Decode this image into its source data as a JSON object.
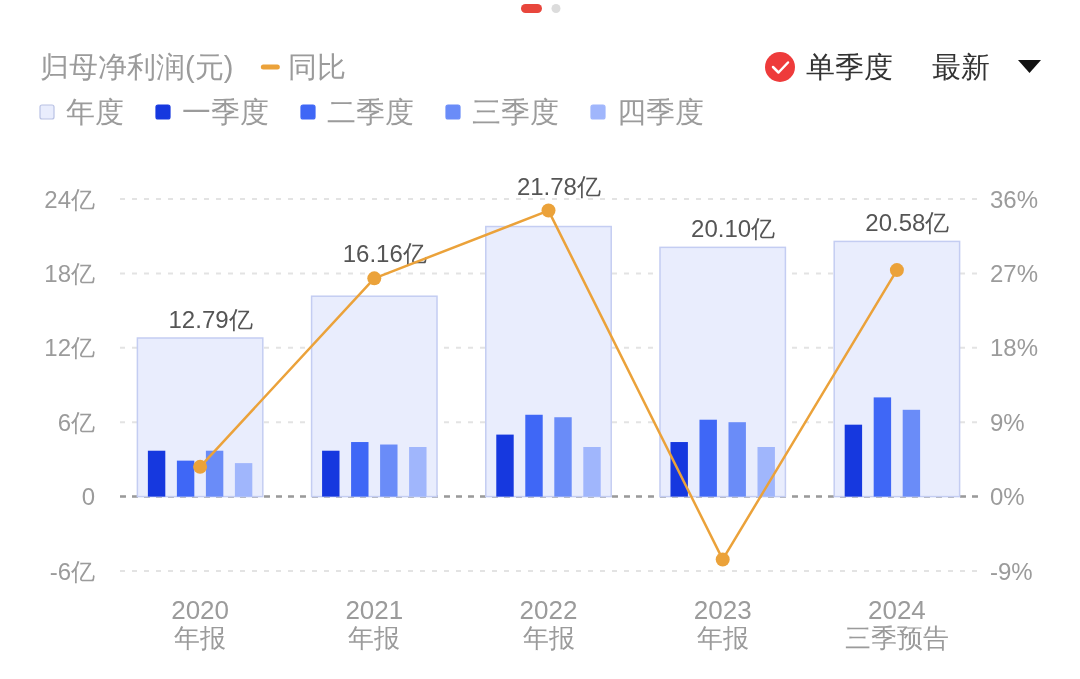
{
  "chart_data": {
    "type": "bar",
    "title": "归母净利润(元)",
    "categories": [
      "2020\n年报",
      "2021\n年报",
      "2022\n年报",
      "2023\n年报",
      "2024\n三季预告"
    ],
    "series": [
      {
        "name": "年度",
        "color": "#e9edfd",
        "values": [
          12.79,
          16.16,
          21.78,
          20.1,
          20.58
        ],
        "value_labels": [
          "12.79亿",
          "16.16亿",
          "21.78亿",
          "20.10亿",
          "20.58亿"
        ]
      },
      {
        "name": "一季度",
        "color": "#1638df",
        "values": [
          3.7,
          3.7,
          5.0,
          4.4,
          5.8
        ]
      },
      {
        "name": "二季度",
        "color": "#3f67f6",
        "values": [
          2.9,
          4.4,
          6.6,
          6.2,
          8.0
        ]
      },
      {
        "name": "三季度",
        "color": "#6a8cf8",
        "values": [
          3.7,
          4.2,
          6.4,
          6.0,
          7.0
        ]
      },
      {
        "name": "四季度",
        "color": "#a0b6fc",
        "values": [
          2.7,
          4.0,
          4.0,
          4.0,
          null
        ]
      },
      {
        "name": "同比",
        "type": "line",
        "axis": "y2",
        "color": "#eba23a",
        "values": [
          3.6,
          26.4,
          34.6,
          -7.6,
          27.4
        ]
      }
    ],
    "ylim": [
      -6,
      24
    ],
    "yticks": [
      {
        "value": -6,
        "label": "-6亿"
      },
      0,
      {
        "value": 6,
        "label": "6亿"
      },
      {
        "value": 12,
        "label": "12亿"
      },
      {
        "value": 18,
        "label": "18亿"
      },
      {
        "value": 24,
        "label": "24亿"
      }
    ],
    "y2lim": [
      -9,
      36
    ],
    "y2ticks": [
      {
        "value": -9,
        "label": "-9%"
      },
      {
        "value": 0,
        "label": "0%"
      },
      {
        "value": 9,
        "label": "9%"
      },
      {
        "value": 18,
        "label": "18%"
      },
      {
        "value": 27,
        "label": "27%"
      },
      {
        "value": 36,
        "label": "36%"
      }
    ],
    "ref_lines": [
      {
        "axis": "y",
        "value": 0,
        "color": "#9a9a9a",
        "line_style": "dashed"
      }
    ],
    "grid": "y",
    "legend": "top left",
    "marker": "circle",
    "annotations": [
      "单季度",
      "最新"
    ]
  }
}
